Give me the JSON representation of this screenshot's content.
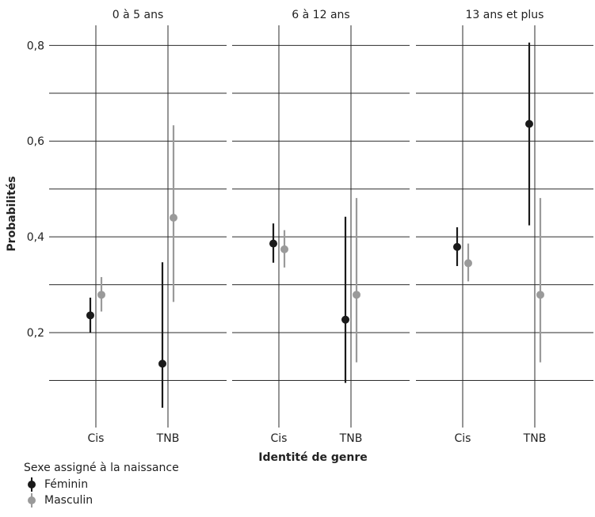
{
  "chart_data": {
    "type": "scatter",
    "subtype": "pointrange",
    "facets": [
      "0 à 5 ans",
      "6 à 12 ans",
      "13 ans et plus"
    ],
    "categories": [
      "Cis",
      "TNB"
    ],
    "xlabel": "Identité de genre",
    "ylabel": "Probabilités",
    "ylim": [
      0.0,
      0.86
    ],
    "yticks": [
      0.2,
      0.4,
      0.6,
      0.8
    ],
    "ytick_labels": [
      "0,2",
      "0,4",
      "0,6",
      "0,8"
    ],
    "grid": true,
    "legend": {
      "title": "Sexe assigné à la naissance",
      "placement": "bottom-left",
      "entries": [
        {
          "name": "Féminin",
          "color": "#1a1a1a"
        },
        {
          "name": "Masculin",
          "color": "#9a9a9a"
        }
      ]
    },
    "series": [
      {
        "name": "Féminin",
        "color": "#1a1a1a",
        "points": [
          {
            "facet": "0 à 5 ans",
            "category": "Cis",
            "y": 0.236,
            "low": 0.2,
            "high": 0.273
          },
          {
            "facet": "0 à 5 ans",
            "category": "TNB",
            "y": 0.135,
            "low": 0.043,
            "high": 0.347
          },
          {
            "facet": "6 à 12 ans",
            "category": "Cis",
            "y": 0.386,
            "low": 0.346,
            "high": 0.428
          },
          {
            "facet": "6 à 12 ans",
            "category": "TNB",
            "y": 0.227,
            "low": 0.095,
            "high": 0.442
          },
          {
            "facet": "13 ans et plus",
            "category": "Cis",
            "y": 0.379,
            "low": 0.339,
            "high": 0.42
          },
          {
            "facet": "13 ans et plus",
            "category": "TNB",
            "y": 0.636,
            "low": 0.424,
            "high": 0.806
          }
        ]
      },
      {
        "name": "Masculin",
        "color": "#9a9a9a",
        "points": [
          {
            "facet": "0 à 5 ans",
            "category": "Cis",
            "y": 0.279,
            "low": 0.244,
            "high": 0.316
          },
          {
            "facet": "0 à 5 ans",
            "category": "TNB",
            "y": 0.44,
            "low": 0.264,
            "high": 0.633
          },
          {
            "facet": "6 à 12 ans",
            "category": "Cis",
            "y": 0.374,
            "low": 0.336,
            "high": 0.414
          },
          {
            "facet": "6 à 12 ans",
            "category": "TNB",
            "y": 0.279,
            "low": 0.138,
            "high": 0.481
          },
          {
            "facet": "13 ans et plus",
            "category": "Cis",
            "y": 0.345,
            "low": 0.307,
            "high": 0.386
          },
          {
            "facet": "13 ans et plus",
            "category": "TNB",
            "y": 0.279,
            "low": 0.138,
            "high": 0.481
          }
        ]
      }
    ]
  }
}
